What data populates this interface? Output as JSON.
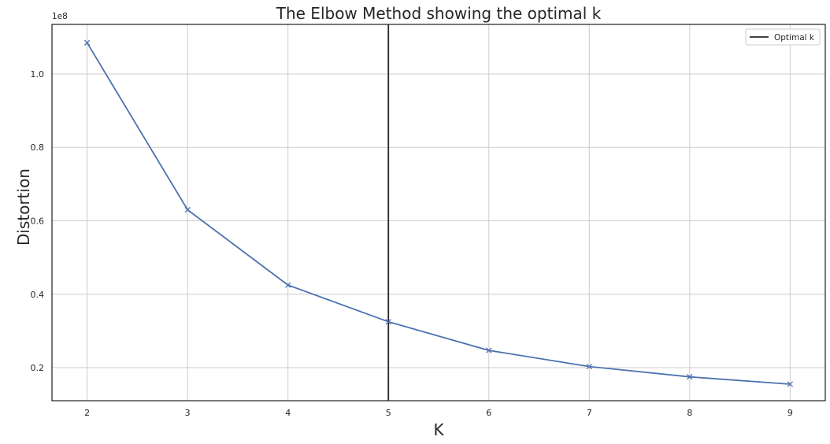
{
  "chart_data": {
    "type": "line",
    "title": "The Elbow Method showing the optimal k",
    "xlabel": "K",
    "ylabel": "Distortion",
    "y_offset_label": "1e8",
    "x": [
      2,
      3,
      4,
      5,
      6,
      7,
      8,
      9
    ],
    "series": [
      {
        "values": [
          1.085,
          0.63,
          0.425,
          0.325,
          0.247,
          0.203,
          0.175,
          0.155
        ],
        "color": "#4c72b0",
        "marker": "x"
      }
    ],
    "vertical_line": {
      "x": 5,
      "label": "Optimal k",
      "color": "#262626"
    },
    "xlim": [
      1.65,
      9.35
    ],
    "ylim": [
      0.11,
      1.135
    ],
    "x_ticks": [
      "2",
      "3",
      "4",
      "5",
      "6",
      "7",
      "8",
      "9"
    ],
    "x_tick_values": [
      2,
      3,
      4,
      5,
      6,
      7,
      8,
      9
    ],
    "y_ticks": [
      "0.2",
      "0.4",
      "0.6",
      "0.8",
      "1.0"
    ],
    "y_tick_values": [
      0.2,
      0.4,
      0.6,
      0.8,
      1.0
    ],
    "grid": true,
    "legend_position": "top-right"
  }
}
